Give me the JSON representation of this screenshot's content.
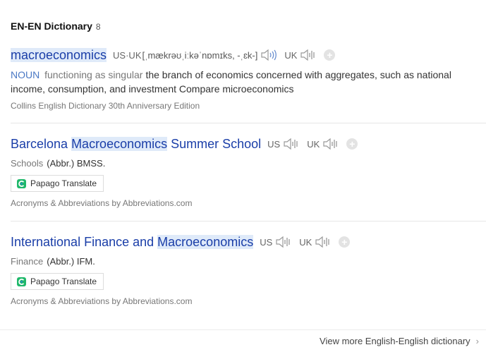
{
  "section": {
    "title": "EN-EN Dictionary",
    "count": "8"
  },
  "entries": [
    {
      "term_pre": "",
      "term_hl": "macroeconomics",
      "term_post": "",
      "us_label": "US·UK",
      "ipa": "[ˌmækrəʊˌiːkəˈnɒmɪks, -ˌɛk-]",
      "uk_label": "UK",
      "pos": "NOUN",
      "usage": "functioning as singular",
      "definition": "the branch of economics concerned with aggregates, such as national income, consumption, and investment Compare microeconomics",
      "source": "Collins English Dictionary 30th Anniversary Edition"
    },
    {
      "term_pre": "Barcelona ",
      "term_hl": "Macroeconomics",
      "term_post": " Summer School",
      "us_label": "US",
      "uk_label": "UK",
      "category": "Schools",
      "abbr": "(Abbr.) BMSS.",
      "translate_label": "Papago Translate",
      "source": "Acronyms & Abbreviations by Abbreviations.com"
    },
    {
      "term_pre": "International Finance and ",
      "term_hl": "Macroeconomics",
      "term_post": "",
      "us_label": "US",
      "uk_label": "UK",
      "category": "Finance",
      "abbr": "(Abbr.) IFM.",
      "translate_label": "Papago Translate",
      "source": "Acronyms & Abbreviations by Abbreviations.com"
    }
  ],
  "footer": {
    "more_label": "View more English-English dictionary",
    "chevron": "›"
  },
  "icons": {
    "speaker": "speaker-icon",
    "plus": "plus-icon",
    "papago": "papago-icon"
  },
  "colors": {
    "term": "#1a3ea8",
    "highlight": "#dfeaf9",
    "pos": "#4a78c4"
  }
}
